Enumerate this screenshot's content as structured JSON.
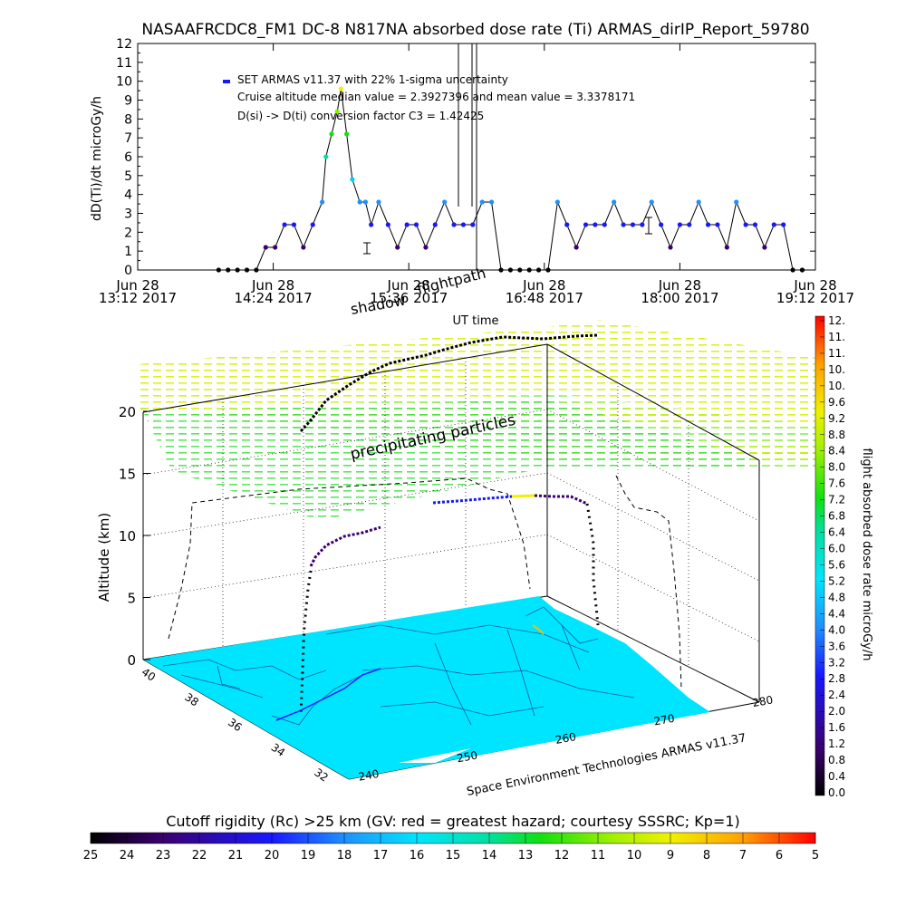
{
  "title": "NASAAFRCDC8_FM1 DC-8   N817NA absorbed dose rate (Ti) ARMAS_dirIP_Report_59780",
  "chart_data": [
    {
      "type": "scatter",
      "ylabel": "dD(Ti)/dt microGy/h",
      "xlabel": "UT time",
      "ylim": [
        0,
        12
      ],
      "yticks": [
        "0",
        "1",
        "2",
        "3",
        "4",
        "5",
        "6",
        "7",
        "8",
        "9",
        "10",
        "11",
        "12"
      ],
      "xticks": [
        {
          "date": "Jun 28",
          "time": "13:12 2017"
        },
        {
          "date": "Jun 28",
          "time": "14:24 2017"
        },
        {
          "date": "Jun 28",
          "time": "15:36 2017"
        },
        {
          "date": "Jun 28",
          "time": "16:48 2017"
        },
        {
          "date": "Jun 28",
          "time": "18:00 2017"
        },
        {
          "date": "Jun 28",
          "time": "19:12 2017"
        }
      ],
      "annotations": [
        "SET ARMAS v11.37 with 22% 1-sigma uncertainty",
        "Cruise altitude median value = 2.3927396 and mean value = 3.3378171",
        "D(si) -> D(ti) conversion factor C3 = 1.42425"
      ],
      "series": [
        {
          "x": [
            "13:55",
            "14:00",
            "14:05",
            "14:10",
            "14:15",
            "14:20",
            "14:25",
            "14:30",
            "14:35",
            "14:40",
            "14:45",
            "14:50",
            "14:52",
            "14:55",
            "14:58",
            "15:00",
            "15:03",
            "15:06",
            "15:10",
            "15:13",
            "15:16",
            "15:20",
            "15:25",
            "15:30",
            "15:35",
            "15:40",
            "15:45",
            "15:50",
            "15:55",
            "16:00",
            "16:05",
            "16:10",
            "16:15",
            "16:20",
            "16:25",
            "16:30",
            "16:35",
            "16:40",
            "16:45",
            "16:50",
            "16:55",
            "17:00",
            "17:05",
            "17:10",
            "17:15",
            "17:20",
            "17:25",
            "17:30",
            "17:35",
            "17:40",
            "17:45",
            "17:50",
            "17:55",
            "18:00",
            "18:05",
            "18:10",
            "18:15",
            "18:20",
            "18:25",
            "18:30",
            "18:35",
            "18:40",
            "18:45",
            "18:50",
            "18:55",
            "19:00",
            "19:05"
          ],
          "values": [
            0,
            0,
            0,
            0,
            0,
            1.2,
            1.2,
            2.4,
            2.4,
            1.2,
            2.4,
            3.6,
            6,
            7.2,
            8.4,
            9.6,
            7.2,
            4.8,
            3.6,
            3.6,
            2.4,
            3.6,
            2.4,
            1.2,
            2.4,
            2.4,
            1.2,
            2.4,
            3.6,
            2.4,
            2.4,
            2.4,
            3.6,
            3.6,
            0,
            0,
            0,
            0,
            0,
            0,
            3.6,
            2.4,
            1.2,
            2.4,
            2.4,
            2.4,
            3.6,
            2.4,
            2.4,
            2.4,
            3.6,
            2.4,
            1.2,
            2.4,
            2.4,
            3.6,
            2.4,
            2.4,
            1.2,
            3.6,
            2.4,
            2.4,
            1.2,
            2.4,
            2.4,
            0,
            0
          ]
        }
      ]
    },
    {
      "type": "scatter",
      "zlabel": "Altitude (km)",
      "zticks": [
        "0",
        "5",
        "10",
        "15",
        "20"
      ],
      "lat_ticks": [
        "40",
        "38",
        "36",
        "34",
        "32"
      ],
      "lon_ticks": [
        "240",
        "250",
        "260",
        "270",
        "280"
      ],
      "labels": {
        "flightpath": "flightpath",
        "shadow": "shadow",
        "particles": "precipitating particles",
        "credit": "Space Environment Technologies ARMAS v11.37"
      },
      "colorbar": {
        "label": "flight absorbed dose rate microGy/h",
        "ticks": [
          "12.",
          "11.",
          "11.",
          "10.",
          "10.",
          "9.6",
          "9.2",
          "8.8",
          "8.4",
          "8.0",
          "7.6",
          "7.2",
          "6.8",
          "6.4",
          "6.0",
          "5.6",
          "5.2",
          "4.8",
          "4.4",
          "4.0",
          "3.6",
          "3.2",
          "2.8",
          "2.4",
          "2.0",
          "1.6",
          "1.2",
          "0.8",
          "0.4",
          "0.0"
        ]
      }
    }
  ],
  "rigidity_bar": {
    "title": "Cutoff rigidity (Rc) >25 km (GV: red = greatest hazard; courtesy SSSRC; Kp=1)",
    "ticks": [
      "25",
      "24",
      "23",
      "22",
      "21",
      "20",
      "19",
      "18",
      "17",
      "16",
      "15",
      "14",
      "13",
      "12",
      "11",
      "10",
      "9",
      "8",
      "7",
      "6",
      "5"
    ]
  },
  "colors": {
    "map_fill": "#00e5ff",
    "gradient": [
      "#000000",
      "#3b0070",
      "#1818ff",
      "#1e90ff",
      "#00e5ff",
      "#00e0a0",
      "#10e010",
      "#a0f000",
      "#f0f000",
      "#ffa000",
      "#ff0000"
    ]
  }
}
